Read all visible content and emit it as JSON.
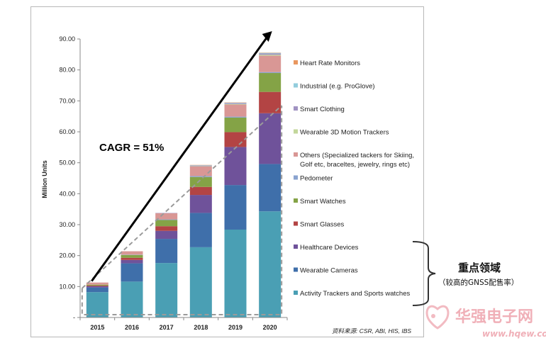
{
  "chart_data": {
    "type": "bar",
    "stacked": true,
    "categories": [
      "2015",
      "2016",
      "2017",
      "2018",
      "2019",
      "2020"
    ],
    "ylabel": "Million Units",
    "ylim": [
      0,
      90
    ],
    "yticks": [
      "-",
      "10.00",
      "20.00",
      "30.00",
      "40.00",
      "50.00",
      "60.00",
      "70.00",
      "80.00",
      "90.00"
    ],
    "grid": false,
    "legend_position": "right",
    "series": [
      {
        "name": "Activity Trackers and Sports watches",
        "color": "#4a9fb4",
        "values": [
          8.2,
          11.6,
          17.6,
          22.7,
          28.4,
          34.3
        ]
      },
      {
        "name": "Wearable Cameras",
        "color": "#3f6faa",
        "values": [
          1.5,
          5.9,
          7.8,
          11.1,
          14.4,
          15.3
        ]
      },
      {
        "name": "Healthcare Devices",
        "color": "#6f529a",
        "values": [
          0.4,
          1.1,
          2.6,
          5.8,
          12.3,
          16.4
        ]
      },
      {
        "name": "Smart Glasses",
        "color": "#b34444",
        "values": [
          0.2,
          0.7,
          1.5,
          2.6,
          4.8,
          6.9
        ]
      },
      {
        "name": "Smart Watches",
        "color": "#84a346",
        "values": [
          0.3,
          0.9,
          2.0,
          3.2,
          4.7,
          6.1
        ]
      },
      {
        "name": "Pedometer",
        "color": "#8aa3cf",
        "values": [
          0.0,
          0.1,
          0.2,
          0.3,
          0.3,
          0.3
        ]
      },
      {
        "name": "Others (Specialized tackers for Skiing, Golf etc, braceltes, jewelry, rings etc)",
        "color": "#d99795",
        "values": [
          0.7,
          1.1,
          2.0,
          3.1,
          3.9,
          5.3
        ]
      },
      {
        "name": "Wearable 3D Motion Trackers",
        "color": "#c3d79b",
        "values": [
          0.0,
          0.0,
          0.0,
          0.1,
          0.2,
          0.3
        ]
      },
      {
        "name": "Smart Clothing",
        "color": "#a193c2",
        "values": [
          0.0,
          0.0,
          0.1,
          0.2,
          0.3,
          0.4
        ]
      },
      {
        "name": "Industrial (e.g. ProGlove)",
        "color": "#93cddd",
        "values": [
          0.0,
          0.0,
          0.0,
          0.1,
          0.1,
          0.2
        ]
      },
      {
        "name": "Heart Rate Monitors",
        "color": "#e9975f",
        "values": [
          0.0,
          0.0,
          0.0,
          0.1,
          0.1,
          0.1
        ]
      }
    ],
    "annotations": {
      "cagr": "CAGR = 51%",
      "source": "资料来源: CSR, ABI, HIS, IBS"
    }
  },
  "side_annotation": {
    "title": "重点领域",
    "subtitle": "（较高的GNSS配售率）"
  },
  "watermark": {
    "text": "华强电子网",
    "url": "www.hqew.com"
  }
}
